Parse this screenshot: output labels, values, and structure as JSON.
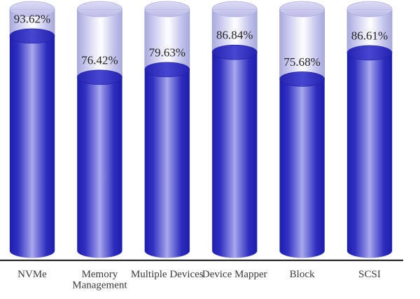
{
  "chart_data": {
    "type": "bar",
    "variant": "3d-cylinder",
    "orientation": "vertical",
    "title": "",
    "xlabel": "",
    "ylabel": "",
    "ylim": [
      0,
      100
    ],
    "grid": false,
    "legend": null,
    "unit": "%",
    "categories": [
      "NVMe",
      "Memory Management",
      "Multiple Devices",
      "Device Mapper",
      "Block",
      "SCSI"
    ],
    "category_lines": [
      [
        "NVMe"
      ],
      [
        "Memory",
        "Management"
      ],
      [
        "Multiple Devices"
      ],
      [
        "Device Mapper"
      ],
      [
        "Block"
      ],
      [
        "SCSI"
      ]
    ],
    "values": [
      93.62,
      76.42,
      79.63,
      86.84,
      75.68,
      86.61
    ],
    "value_labels": [
      "93.62%",
      "76.42%",
      "79.63%",
      "86.84%",
      "75.68%",
      "86.61%"
    ]
  },
  "style_colors": {
    "bar_fill_dark": "#1e1ead",
    "bar_fill_mid": "#3030c2",
    "bar_fill_highlight": "#a9a9ec",
    "bar_cap_fill": "#4646d0",
    "tube_edge": "#a9a9dc",
    "tube_center": "#fdfdff",
    "tube_cap": "#cbcbef",
    "axis_line": "#161616",
    "value_text": "#242424",
    "category_text": "#3a3a3a",
    "background": "#ffffff"
  }
}
